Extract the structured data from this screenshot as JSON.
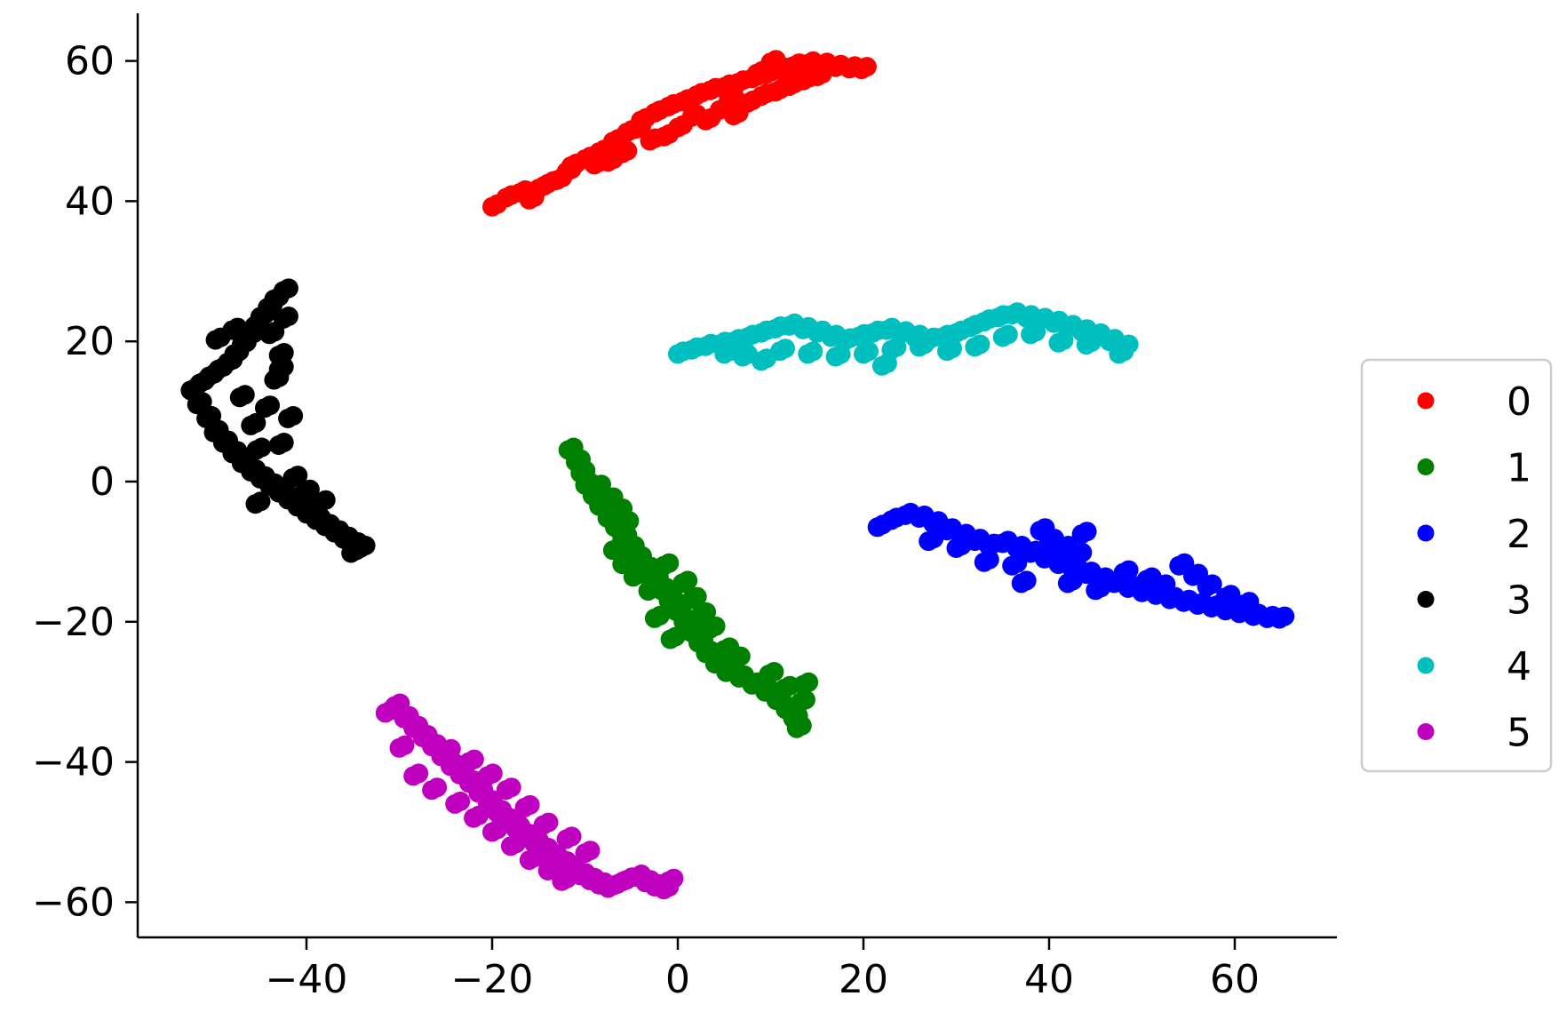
{
  "chart_data": {
    "type": "scatter",
    "title": "",
    "xlabel": "",
    "ylabel": "",
    "xlim": [
      -58,
      71
    ],
    "ylim": [
      -65,
      67
    ],
    "xticks": [
      -40,
      -20,
      0,
      20,
      40,
      60
    ],
    "yticks": [
      60,
      40,
      20,
      0,
      -20,
      -40,
      -60
    ],
    "grid": false,
    "legend_position": "right",
    "series": [
      {
        "name": "0",
        "color": "#ff0000",
        "points": [
          [
            -20,
            39.2
          ],
          [
            -18.5,
            40.5
          ],
          [
            -17,
            41.2
          ],
          [
            -15,
            41.8
          ],
          [
            -13,
            43
          ],
          [
            -11.5,
            45
          ],
          [
            -10,
            46
          ],
          [
            -8.5,
            47
          ],
          [
            -7,
            48.5
          ],
          [
            -5.5,
            49.8
          ],
          [
            -4,
            51.5
          ],
          [
            -2.5,
            52.6
          ],
          [
            -1,
            53.5
          ],
          [
            0.5,
            54.2
          ],
          [
            2,
            55.1
          ],
          [
            3.5,
            55.8
          ],
          [
            5,
            56.3
          ],
          [
            6.5,
            56.9
          ],
          [
            8,
            57.5
          ],
          [
            9.5,
            58.1
          ],
          [
            11,
            58.7
          ],
          [
            12.5,
            59.3
          ],
          [
            14,
            59.6
          ],
          [
            15.5,
            59.4
          ],
          [
            17,
            59.1
          ],
          [
            18.5,
            58.9
          ],
          [
            19.8,
            58.8
          ],
          [
            -16,
            40.2
          ],
          [
            -12,
            44.2
          ],
          [
            -9,
            45.2
          ],
          [
            -6,
            46.8
          ],
          [
            -3,
            48.6
          ],
          [
            0,
            50.5
          ],
          [
            1.5,
            52
          ],
          [
            3,
            51.5
          ],
          [
            4.5,
            53
          ],
          [
            6,
            52.2
          ],
          [
            7.5,
            54
          ],
          [
            9,
            55
          ],
          [
            10.5,
            55.6
          ],
          [
            12,
            56.4
          ],
          [
            13.5,
            57.2
          ],
          [
            15,
            57.8
          ],
          [
            10,
            59.8
          ],
          [
            8.5,
            58.2
          ],
          [
            -14,
            42.5
          ],
          [
            -7.5,
            45.6
          ],
          [
            -4.5,
            50.3
          ],
          [
            -1.5,
            49.2
          ],
          [
            5.5,
            54.6
          ]
        ]
      },
      {
        "name": "1",
        "color": "#008000",
        "points": [
          [
            -11.8,
            4.5
          ],
          [
            -11,
            2.8
          ],
          [
            -10.5,
            1.2
          ],
          [
            -10,
            -0.5
          ],
          [
            -9.2,
            -2
          ],
          [
            -8.5,
            -3.5
          ],
          [
            -7.6,
            -5.2
          ],
          [
            -6.8,
            -6.5
          ],
          [
            -6,
            -8
          ],
          [
            -5.2,
            -9.5
          ],
          [
            -4.4,
            -11
          ],
          [
            -3.5,
            -12.5
          ],
          [
            -2.6,
            -14
          ],
          [
            -1.8,
            -15.5
          ],
          [
            -1,
            -17
          ],
          [
            -0.2,
            -18.5
          ],
          [
            0.6,
            -20
          ],
          [
            1.4,
            -21.5
          ],
          [
            2.2,
            -23
          ],
          [
            3,
            -24.5
          ],
          [
            4,
            -26
          ],
          [
            5.2,
            -27.2
          ],
          [
            6.6,
            -28
          ],
          [
            8,
            -29
          ],
          [
            9.4,
            -30
          ],
          [
            10.6,
            -31.2
          ],
          [
            11.6,
            -32.5
          ],
          [
            12.4,
            -33.8
          ],
          [
            12.8,
            -35.2
          ],
          [
            13.5,
            -29
          ],
          [
            -8.8,
            -0.8
          ],
          [
            -7.5,
            -2.6
          ],
          [
            -6.5,
            -4.2
          ],
          [
            -5.8,
            -6
          ],
          [
            -7,
            -9.8
          ],
          [
            -6,
            -11.8
          ],
          [
            -4.8,
            -13.6
          ],
          [
            -3.2,
            -15.6
          ],
          [
            -1.5,
            -12
          ],
          [
            0.5,
            -14.5
          ],
          [
            1.5,
            -16.8
          ],
          [
            2.5,
            -19
          ],
          [
            3.5,
            -21
          ],
          [
            -2.5,
            -19.5
          ],
          [
            -0.8,
            -22.5
          ],
          [
            5,
            -24
          ],
          [
            6.2,
            -25.3
          ],
          [
            9.8,
            -27.5
          ],
          [
            11.5,
            -29.5
          ],
          [
            13.2,
            -31.5
          ]
        ]
      },
      {
        "name": "2",
        "color": "#0000ff",
        "points": [
          [
            21.5,
            -6.5
          ],
          [
            23,
            -5.5
          ],
          [
            24.5,
            -4.8
          ],
          [
            26,
            -5.2
          ],
          [
            27.5,
            -6
          ],
          [
            29,
            -7
          ],
          [
            30.5,
            -7.8
          ],
          [
            32,
            -8.5
          ],
          [
            33.5,
            -9.2
          ],
          [
            35,
            -8.8
          ],
          [
            36.5,
            -9.5
          ],
          [
            38,
            -10.2
          ],
          [
            39.5,
            -11
          ],
          [
            41,
            -11.8
          ],
          [
            42.5,
            -12.5
          ],
          [
            44,
            -13.2
          ],
          [
            45.5,
            -14
          ],
          [
            47,
            -14.5
          ],
          [
            48.5,
            -15.2
          ],
          [
            50,
            -15.8
          ],
          [
            51.5,
            -16.2
          ],
          [
            53,
            -16.8
          ],
          [
            54.5,
            -17.2
          ],
          [
            56,
            -17.6
          ],
          [
            57.5,
            -18
          ],
          [
            59,
            -18.4
          ],
          [
            60.5,
            -18.8
          ],
          [
            62,
            -19.2
          ],
          [
            63.5,
            -19.5
          ],
          [
            64.8,
            -19.6
          ],
          [
            27,
            -8.5
          ],
          [
            30,
            -9.5
          ],
          [
            33,
            -11.5
          ],
          [
            36,
            -12
          ],
          [
            39,
            -7
          ],
          [
            40,
            -8.5
          ],
          [
            41.5,
            -9.5
          ],
          [
            43,
            -10.5
          ],
          [
            42,
            -14.5
          ],
          [
            45,
            -15.5
          ],
          [
            48,
            -13
          ],
          [
            50.5,
            -14
          ],
          [
            52,
            -15
          ],
          [
            54,
            -12
          ],
          [
            55.5,
            -13.5
          ],
          [
            57,
            -15
          ],
          [
            59,
            -16.5
          ],
          [
            61,
            -17.5
          ],
          [
            37,
            -14.5
          ],
          [
            43.5,
            -7.5
          ]
        ]
      },
      {
        "name": "3",
        "color": "#000000",
        "points": [
          [
            -42.5,
            27.2
          ],
          [
            -43.5,
            26
          ],
          [
            -44.2,
            24.8
          ],
          [
            -45,
            23.5
          ],
          [
            -45.6,
            22.2
          ],
          [
            -46.2,
            20.8
          ],
          [
            -47,
            19.5
          ],
          [
            -47.8,
            18.2
          ],
          [
            -48.5,
            17
          ],
          [
            -49.5,
            16
          ],
          [
            -50.5,
            15
          ],
          [
            -51.5,
            14
          ],
          [
            -52.5,
            13
          ],
          [
            -51.8,
            11
          ],
          [
            -50.8,
            9
          ],
          [
            -50,
            7
          ],
          [
            -49,
            5.5
          ],
          [
            -48,
            4
          ],
          [
            -47,
            2.6
          ],
          [
            -46,
            1.4
          ],
          [
            -45,
            0.4
          ],
          [
            -44,
            -0.6
          ],
          [
            -43,
            -1.6
          ],
          [
            -42,
            -2.6
          ],
          [
            -41,
            -3.6
          ],
          [
            -40,
            -4.6
          ],
          [
            -39,
            -5.5
          ],
          [
            -38,
            -6.4
          ],
          [
            -37,
            -7.3
          ],
          [
            -36,
            -8.2
          ],
          [
            -35,
            -9
          ],
          [
            -34.2,
            -9.5
          ],
          [
            -35.2,
            -10.2
          ],
          [
            -45.5,
            -3.2
          ],
          [
            -44.5,
            10.5
          ],
          [
            -43.5,
            14.5
          ],
          [
            -43,
            18
          ],
          [
            -44,
            21
          ],
          [
            -42.5,
            23.2
          ],
          [
            -49.8,
            20.2
          ],
          [
            -48,
            21.6
          ],
          [
            -47.2,
            12
          ],
          [
            -46,
            8
          ],
          [
            -45.4,
            4.5
          ],
          [
            -43,
            5.2
          ],
          [
            -41.5,
            0.5
          ],
          [
            -40.2,
            -1.5
          ],
          [
            -38.5,
            -3
          ],
          [
            -42,
            9
          ],
          [
            -43,
            16
          ]
        ]
      },
      {
        "name": "4",
        "color": "#00bfbf",
        "points": [
          [
            0,
            18.2
          ],
          [
            1.5,
            18.8
          ],
          [
            3,
            19.3
          ],
          [
            4.5,
            19.6
          ],
          [
            6,
            20
          ],
          [
            7.5,
            20.6
          ],
          [
            9,
            21.2
          ],
          [
            10.5,
            21.8
          ],
          [
            12,
            22.2
          ],
          [
            13.5,
            21.7
          ],
          [
            15,
            21.2
          ],
          [
            16.5,
            20.6
          ],
          [
            18,
            20.1
          ],
          [
            19.5,
            20.7
          ],
          [
            21,
            21.2
          ],
          [
            22.5,
            21.6
          ],
          [
            24,
            21.1
          ],
          [
            25.5,
            20.6
          ],
          [
            27,
            20.2
          ],
          [
            28.5,
            20.6
          ],
          [
            30,
            21.2
          ],
          [
            31.5,
            22
          ],
          [
            33,
            22.8
          ],
          [
            34.5,
            23.4
          ],
          [
            36,
            23.8
          ],
          [
            37.5,
            23.4
          ],
          [
            39,
            23
          ],
          [
            40.5,
            22.6
          ],
          [
            42,
            22
          ],
          [
            43.5,
            21.4
          ],
          [
            45,
            20.8
          ],
          [
            46.5,
            20
          ],
          [
            48,
            19.2
          ],
          [
            47.5,
            18.2
          ],
          [
            44,
            19.5
          ],
          [
            41,
            19.8
          ],
          [
            38,
            21
          ],
          [
            35,
            20.6
          ],
          [
            32,
            19.2
          ],
          [
            29,
            18.6
          ],
          [
            26,
            19.2
          ],
          [
            23,
            18.8
          ],
          [
            20,
            18.2
          ],
          [
            17,
            17.8
          ],
          [
            14,
            18.2
          ],
          [
            11,
            18.6
          ],
          [
            9,
            17.2
          ],
          [
            7,
            17.8
          ],
          [
            5,
            18.2
          ],
          [
            22,
            16.5
          ]
        ]
      },
      {
        "name": "5",
        "color": "#bf00bf",
        "points": [
          [
            -31.5,
            -33
          ],
          [
            -30.5,
            -32
          ],
          [
            -29.5,
            -33.8
          ],
          [
            -28.5,
            -35.2
          ],
          [
            -27.5,
            -36.5
          ],
          [
            -26.5,
            -37.8
          ],
          [
            -25.5,
            -39.2
          ],
          [
            -24.5,
            -40.6
          ],
          [
            -23.5,
            -41.8
          ],
          [
            -22.5,
            -43
          ],
          [
            -21.5,
            -44.4
          ],
          [
            -20.5,
            -45.8
          ],
          [
            -19.5,
            -47.2
          ],
          [
            -18.5,
            -48.4
          ],
          [
            -17.5,
            -49.5
          ],
          [
            -16.5,
            -50.6
          ],
          [
            -15.5,
            -51.6
          ],
          [
            -14.5,
            -52.6
          ],
          [
            -13.5,
            -53.6
          ],
          [
            -12.5,
            -54.5
          ],
          [
            -11.5,
            -55.4
          ],
          [
            -10.5,
            -56.2
          ],
          [
            -9.5,
            -56.9
          ],
          [
            -8.5,
            -57.5
          ],
          [
            -7.5,
            -58
          ],
          [
            -6.5,
            -57.4
          ],
          [
            -5.5,
            -56.8
          ],
          [
            -4.5,
            -56.4
          ],
          [
            -3.5,
            -57.2
          ],
          [
            -2.5,
            -57.8
          ],
          [
            -1.5,
            -58.2
          ],
          [
            -1,
            -57
          ],
          [
            -30,
            -38
          ],
          [
            -28.5,
            -42
          ],
          [
            -26.5,
            -44
          ],
          [
            -24,
            -46
          ],
          [
            -22,
            -48
          ],
          [
            -20,
            -50
          ],
          [
            -18,
            -52
          ],
          [
            -16,
            -54
          ],
          [
            -14,
            -55.5
          ],
          [
            -12.5,
            -57
          ],
          [
            -25,
            -38.5
          ],
          [
            -22.5,
            -40
          ],
          [
            -20.5,
            -42
          ],
          [
            -18.5,
            -44
          ],
          [
            -16.5,
            -46.5
          ],
          [
            -14.5,
            -49
          ],
          [
            -12,
            -51
          ],
          [
            -10,
            -53
          ]
        ]
      }
    ]
  }
}
